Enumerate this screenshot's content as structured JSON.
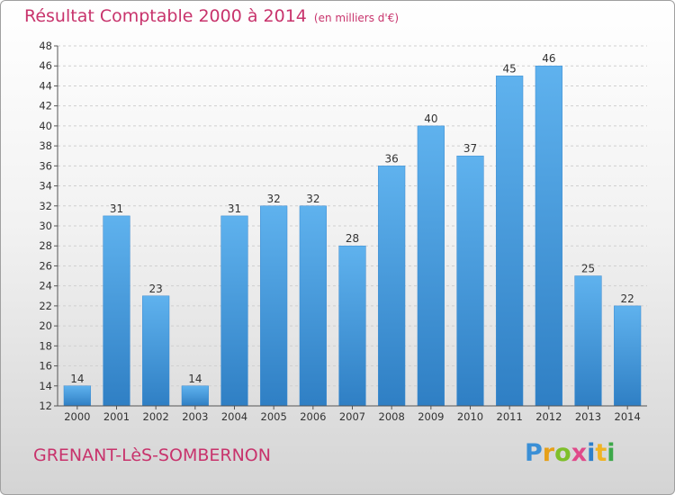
{
  "title": "Résultat Comptable 2000 à 2014",
  "unit": "(en milliers d'€)",
  "location": "GRENANT-LèS-SOMBERNON",
  "logo": {
    "letters": [
      "P",
      "r",
      "o",
      "x",
      "i",
      "t",
      "i"
    ],
    "colors": [
      "#3a8fd6",
      "#e6a019",
      "#7fbf2a",
      "#e04a8a",
      "#2d7fc9",
      "#f0b324",
      "#3da84a"
    ]
  },
  "chart_data": {
    "type": "bar",
    "categories": [
      "2000",
      "2001",
      "2002",
      "2003",
      "2004",
      "2005",
      "2006",
      "2007",
      "2008",
      "2009",
      "2010",
      "2011",
      "2012",
      "2013",
      "2014"
    ],
    "values": [
      14,
      31,
      23,
      14,
      31,
      32,
      32,
      28,
      36,
      40,
      37,
      45,
      46,
      25,
      22
    ],
    "ylim": [
      12,
      48
    ],
    "yticks": [
      12,
      14,
      16,
      18,
      20,
      22,
      24,
      26,
      28,
      30,
      32,
      34,
      36,
      38,
      40,
      42,
      44,
      46,
      48
    ],
    "grid": true,
    "bar_color": "#4a9de0"
  }
}
